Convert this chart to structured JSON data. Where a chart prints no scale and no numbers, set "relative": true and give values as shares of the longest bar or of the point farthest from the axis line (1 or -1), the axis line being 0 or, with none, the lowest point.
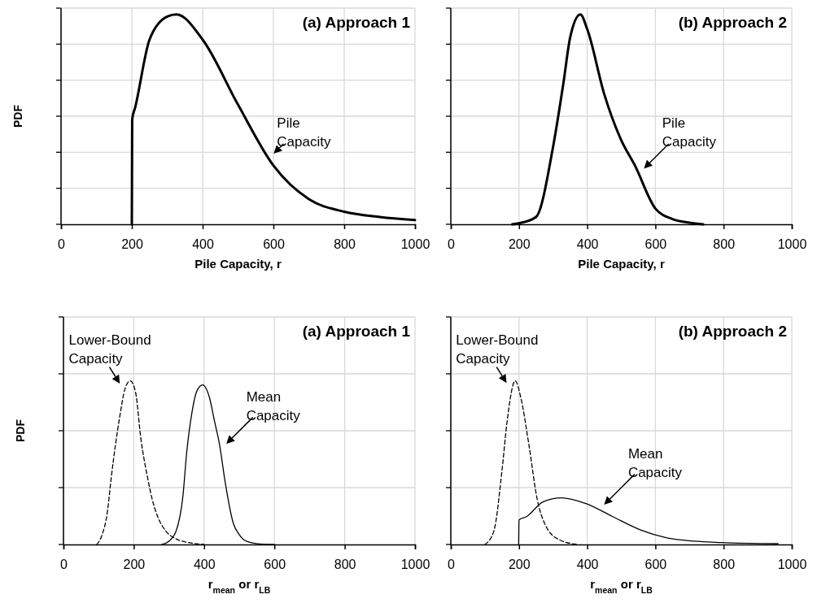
{
  "chart_data": [
    {
      "type": "line",
      "title": "(a) Approach 1",
      "ylabel": "PDF",
      "xlabel": "Pile Capacity,  r",
      "relative": true,
      "xlim": [
        0,
        1000
      ],
      "xticks": [
        0,
        200,
        400,
        600,
        800,
        1000
      ],
      "grid": true,
      "tick_labels": "x",
      "line_style": "solid",
      "series": [
        {
          "color": "#000000",
          "x": [
            200,
            201,
            210,
            250,
            300,
            326,
            400,
            500,
            600,
            700,
            800,
            900,
            1000
          ],
          "values": [
            0,
            0.5,
            0.56,
            0.88,
            0.99,
            1,
            0.88,
            0.57,
            0.28,
            0.12,
            0.06,
            0.035,
            0.02
          ]
        }
      ],
      "annotations": [
        "Pile\nCapacity"
      ]
    },
    {
      "type": "line",
      "title": "(b) Approach 2",
      "xlabel": "Pile Capacity,  r",
      "relative": true,
      "xlim": [
        0,
        1000
      ],
      "xticks": [
        0,
        200,
        400,
        600,
        800,
        1000
      ],
      "grid": true,
      "tick_labels": "x",
      "line_style": "solid",
      "series": [
        {
          "color": "#000000",
          "x": [
            180,
            200,
            250,
            300,
            330,
            350,
            380,
            400,
            450,
            500,
            540,
            600,
            650,
            700,
            740
          ],
          "values": [
            0,
            0.005,
            0.035,
            0.37,
            0.67,
            0.89,
            1,
            0.93,
            0.62,
            0.4,
            0.28,
            0.075,
            0.025,
            0.008,
            0
          ]
        }
      ],
      "annotations": [
        "Pile\nCapacity"
      ]
    },
    {
      "type": "line",
      "title": "(a) Approach 1",
      "ylabel": "PDF",
      "xlabel": "r$_{mean}$ or r$_{LB}$",
      "relative": true,
      "xlim": [
        0,
        1000
      ],
      "xticks": [
        0,
        200,
        400,
        600,
        800,
        1000
      ],
      "grid": true,
      "tick_labels": "x",
      "series": [
        {
          "color": "#000000",
          "line_style": "dashed",
          "x": [
            95,
            110,
            125,
            136,
            160,
            175,
            190,
            205,
            220,
            240,
            252,
            270,
            290,
            320,
            360,
            400
          ],
          "values": [
            0,
            0.06,
            0.2,
            0.41,
            0.78,
            0.95,
            1,
            0.93,
            0.65,
            0.4,
            0.28,
            0.16,
            0.085,
            0.035,
            0.01,
            0
          ]
        },
        {
          "color": "#000000",
          "line_style": "solid",
          "x": [
            280,
            300,
            320,
            340,
            350,
            365,
            380,
            396,
            415,
            430,
            444,
            460,
            483,
            500,
            520,
            560,
            600
          ],
          "values": [
            0,
            0.02,
            0.08,
            0.3,
            0.55,
            0.8,
            0.94,
            0.975,
            0.9,
            0.75,
            0.61,
            0.38,
            0.13,
            0.06,
            0.02,
            0.003,
            0
          ]
        }
      ],
      "annotations": [
        "Lower-Bound\nCapacity",
        "Mean\nCapacity"
      ]
    },
    {
      "type": "line",
      "title": "(b) Approach 2",
      "xlabel": "r$_{mean}$ or r$_{LB}$",
      "relative": true,
      "xlim": [
        0,
        1000
      ],
      "xticks": [
        0,
        200,
        400,
        600,
        800,
        1000
      ],
      "grid": true,
      "tick_labels": "x",
      "series": [
        {
          "color": "#000000",
          "line_style": "dashed",
          "x": [
            100,
            126,
            150,
            165,
            189,
            205,
            229,
            253,
            277,
            317,
            372
          ],
          "values": [
            0,
            0.08,
            0.45,
            0.75,
            1,
            0.9,
            0.61,
            0.28,
            0.12,
            0.03,
            0
          ]
        },
        {
          "color": "#000000",
          "line_style": "solid",
          "x": [
            199,
            200,
            222,
            270,
            324,
            396,
            475,
            555,
            634,
            714,
            793,
            960
          ],
          "values": [
            0,
            0.15,
            0.17,
            0.26,
            0.285,
            0.25,
            0.17,
            0.09,
            0.04,
            0.02,
            0.012,
            0.005
          ]
        }
      ],
      "annotations": [
        "Lower-Bound\nCapacity",
        "Mean\nCapacity"
      ]
    }
  ]
}
